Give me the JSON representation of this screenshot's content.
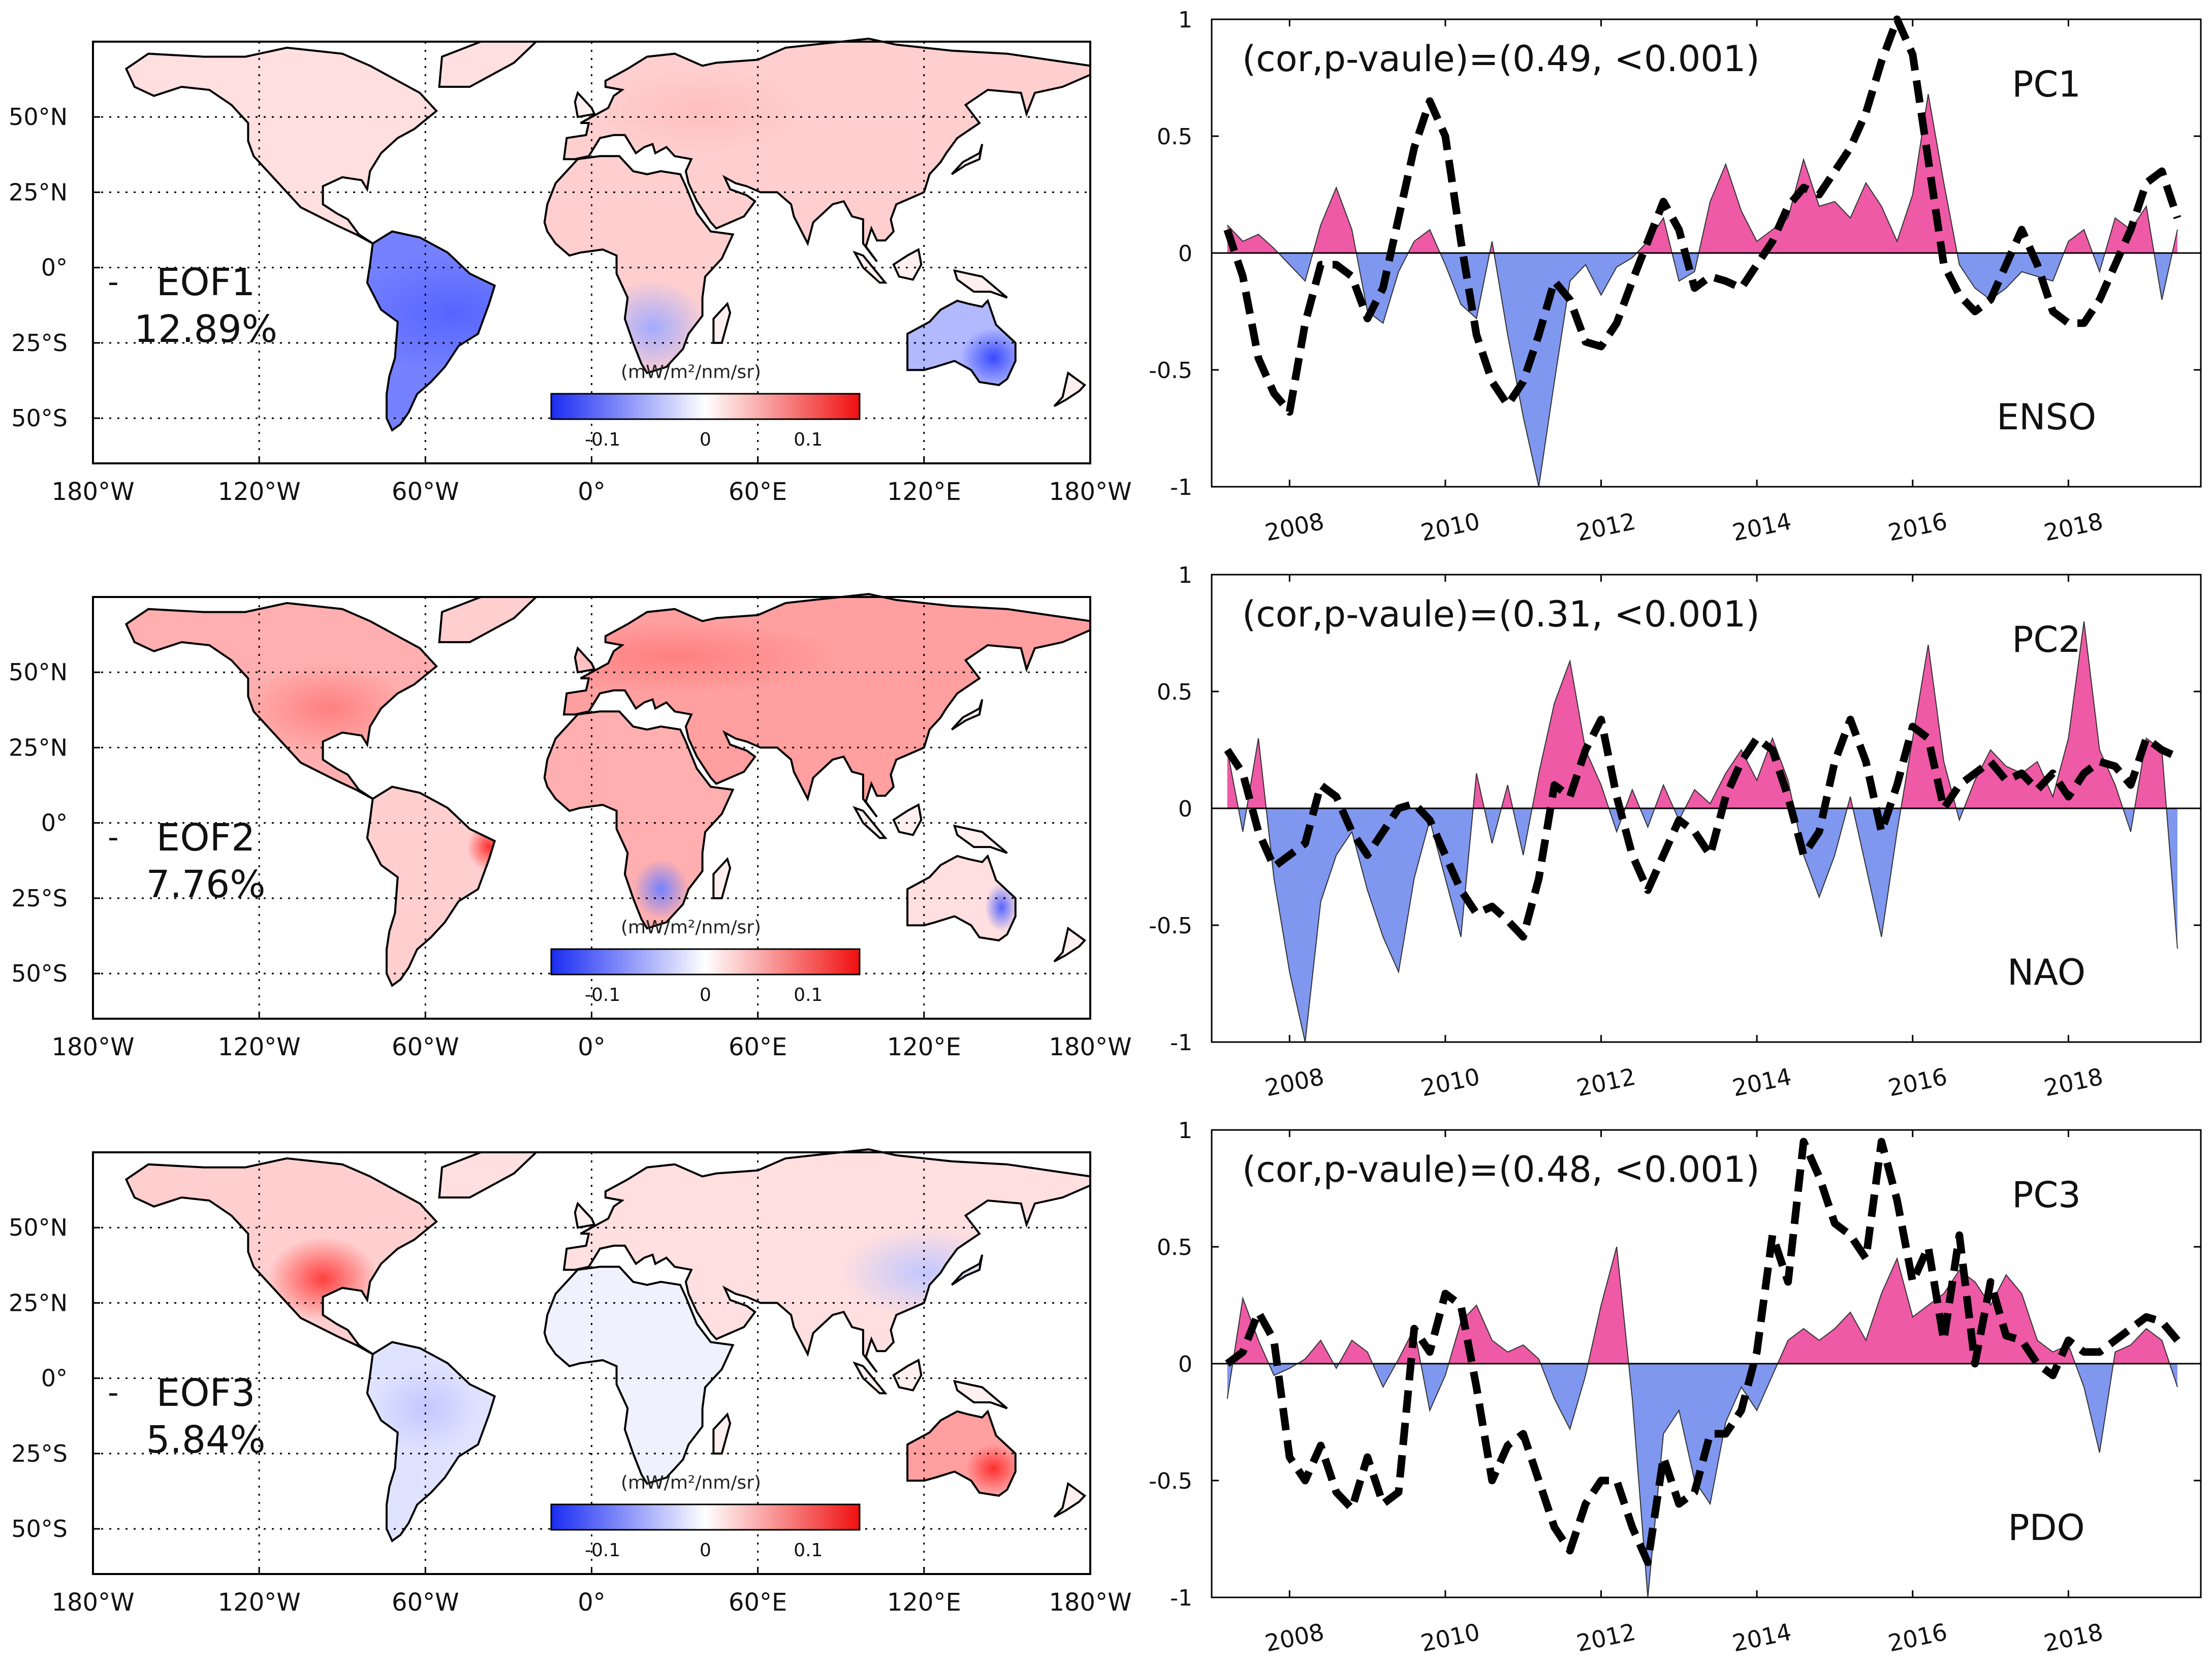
{
  "colors": {
    "positive_fill": "#ee5aa6",
    "negative_fill": "#7f97ee",
    "index_line": "#000000",
    "cbar_low": "#1a2cf2",
    "cbar_mid": "#ffffff",
    "cbar_high": "#f01010"
  },
  "map_axes": {
    "lon_ticks": [
      "180°W",
      "120°W",
      "60°W",
      "0°",
      "60°E",
      "120°E",
      "180°W"
    ],
    "lat_ticks": [
      "50°N",
      "25°N",
      "0°",
      "25°S",
      "50°S"
    ]
  },
  "colorbar": {
    "unit": "(mW/m²/nm/sr)",
    "tick_labels": [
      "-0.1",
      "0",
      "0.1"
    ],
    "range": [
      -0.15,
      0.15
    ]
  },
  "panels": [
    {
      "eof_name": "EOF1",
      "eof_variance": "12.89%",
      "pc_name": "PC1",
      "index_name": "ENSO",
      "cor_text": "(cor,p-vaule)=(0.49, <0.001)"
    },
    {
      "eof_name": "EOF2",
      "eof_variance": "7.76%",
      "pc_name": "PC2",
      "index_name": "NAO",
      "cor_text": "(cor,p-vaule)=(0.31, <0.001)"
    },
    {
      "eof_name": "EOF3",
      "eof_variance": "5.84%",
      "pc_name": "PC3",
      "index_name": "PDO",
      "cor_text": "(cor,p-vaule)=(0.48, <0.001)"
    }
  ],
  "chart_data": [
    {
      "type": "area",
      "title": "PC1 vs ENSO",
      "xlabel": "",
      "ylabel": "",
      "xlim": [
        2007.0,
        2019.7
      ],
      "ylim": [
        -1,
        1
      ],
      "x_ticks": [
        "2008",
        "2010",
        "2012",
        "2014",
        "2016",
        "2018"
      ],
      "y_ticks": [
        "1",
        "0.5",
        "0",
        "-0.5",
        "-1"
      ],
      "series": [
        {
          "name": "PC1",
          "style": "filled",
          "x": [
            2007.2,
            2007.4,
            2007.6,
            2007.8,
            2008.0,
            2008.2,
            2008.4,
            2008.6,
            2008.8,
            2009.0,
            2009.2,
            2009.4,
            2009.6,
            2009.8,
            2010.0,
            2010.2,
            2010.4,
            2010.6,
            2010.8,
            2011.0,
            2011.2,
            2011.4,
            2011.6,
            2011.8,
            2012.0,
            2012.2,
            2012.4,
            2012.6,
            2012.8,
            2013.0,
            2013.2,
            2013.4,
            2013.6,
            2013.8,
            2014.0,
            2014.2,
            2014.4,
            2014.6,
            2014.8,
            2015.0,
            2015.2,
            2015.4,
            2015.6,
            2015.8,
            2016.0,
            2016.2,
            2016.4,
            2016.6,
            2016.8,
            2017.0,
            2017.2,
            2017.4,
            2017.6,
            2017.8,
            2018.0,
            2018.2,
            2018.4,
            2018.6,
            2018.8,
            2019.0,
            2019.2,
            2019.4
          ],
          "values": [
            0.12,
            0.05,
            0.08,
            0.02,
            -0.05,
            -0.12,
            0.12,
            0.28,
            0.1,
            -0.25,
            -0.3,
            -0.08,
            0.05,
            0.1,
            -0.05,
            -0.22,
            -0.28,
            0.05,
            -0.35,
            -0.7,
            -1.0,
            -0.55,
            -0.12,
            -0.05,
            -0.18,
            -0.06,
            -0.02,
            0.05,
            0.15,
            -0.12,
            -0.08,
            0.22,
            0.38,
            0.18,
            0.05,
            0.1,
            0.15,
            0.4,
            0.2,
            0.22,
            0.15,
            0.3,
            0.2,
            0.05,
            0.25,
            0.68,
            0.3,
            -0.05,
            -0.15,
            -0.2,
            -0.15,
            -0.08,
            -0.1,
            -0.12,
            0.05,
            0.1,
            -0.08,
            0.15,
            0.1,
            0.2,
            -0.2,
            0.1
          ]
        },
        {
          "name": "ENSO",
          "style": "dashed",
          "x": [
            2007.2,
            2007.4,
            2007.6,
            2007.8,
            2008.0,
            2008.2,
            2008.4,
            2008.6,
            2008.8,
            2009.0,
            2009.2,
            2009.4,
            2009.6,
            2009.8,
            2010.0,
            2010.2,
            2010.4,
            2010.6,
            2010.8,
            2011.0,
            2011.2,
            2011.4,
            2011.6,
            2011.8,
            2012.0,
            2012.2,
            2012.4,
            2012.6,
            2012.8,
            2013.0,
            2013.2,
            2013.4,
            2013.6,
            2013.8,
            2014.0,
            2014.2,
            2014.4,
            2014.6,
            2014.8,
            2015.0,
            2015.2,
            2015.4,
            2015.6,
            2015.8,
            2016.0,
            2016.2,
            2016.4,
            2016.6,
            2016.8,
            2017.0,
            2017.2,
            2017.4,
            2017.6,
            2017.8,
            2018.0,
            2018.2,
            2018.4,
            2018.6,
            2018.8,
            2019.0,
            2019.2,
            2019.4
          ],
          "values": [
            0.1,
            -0.1,
            -0.45,
            -0.6,
            -0.68,
            -0.3,
            -0.05,
            -0.05,
            -0.1,
            -0.28,
            -0.15,
            0.15,
            0.45,
            0.65,
            0.5,
            0.05,
            -0.35,
            -0.55,
            -0.65,
            -0.55,
            -0.35,
            -0.12,
            -0.2,
            -0.38,
            -0.4,
            -0.3,
            -0.12,
            0.05,
            0.22,
            0.1,
            -0.15,
            -0.1,
            -0.12,
            -0.15,
            -0.05,
            0.05,
            0.2,
            0.28,
            0.25,
            0.35,
            0.45,
            0.6,
            0.82,
            1.0,
            0.85,
            0.4,
            -0.05,
            -0.18,
            -0.25,
            -0.2,
            -0.05,
            0.1,
            -0.05,
            -0.25,
            -0.3,
            -0.3,
            -0.2,
            -0.05,
            0.1,
            0.3,
            0.35,
            0.15
          ]
        }
      ]
    },
    {
      "type": "area",
      "title": "PC2 vs NAO",
      "xlabel": "",
      "ylabel": "",
      "xlim": [
        2007.0,
        2019.7
      ],
      "ylim": [
        -1,
        1
      ],
      "x_ticks": [
        "2008",
        "2010",
        "2012",
        "2014",
        "2016",
        "2018"
      ],
      "y_ticks": [
        "1",
        "0.5",
        "0",
        "-0.5",
        "-1"
      ],
      "series": [
        {
          "name": "PC2",
          "style": "filled",
          "x": [
            2007.2,
            2007.4,
            2007.6,
            2007.8,
            2008.0,
            2008.2,
            2008.4,
            2008.6,
            2008.8,
            2009.0,
            2009.2,
            2009.4,
            2009.6,
            2009.8,
            2010.0,
            2010.2,
            2010.4,
            2010.6,
            2010.8,
            2011.0,
            2011.2,
            2011.4,
            2011.6,
            2011.8,
            2012.0,
            2012.2,
            2012.4,
            2012.6,
            2012.8,
            2013.0,
            2013.2,
            2013.4,
            2013.6,
            2013.8,
            2014.0,
            2014.2,
            2014.4,
            2014.6,
            2014.8,
            2015.0,
            2015.2,
            2015.4,
            2015.6,
            2015.8,
            2016.0,
            2016.2,
            2016.4,
            2016.6,
            2016.8,
            2017.0,
            2017.2,
            2017.4,
            2017.6,
            2017.8,
            2018.0,
            2018.2,
            2018.4,
            2018.6,
            2018.8,
            2019.0,
            2019.2,
            2019.4
          ],
          "values": [
            0.25,
            -0.1,
            0.3,
            -0.3,
            -0.7,
            -1.0,
            -0.4,
            -0.2,
            -0.1,
            -0.35,
            -0.55,
            -0.7,
            -0.3,
            -0.05,
            -0.3,
            -0.55,
            0.15,
            -0.15,
            0.1,
            -0.2,
            0.15,
            0.45,
            0.63,
            0.25,
            0.1,
            -0.1,
            0.08,
            -0.08,
            0.1,
            -0.05,
            0.08,
            0.02,
            0.15,
            0.25,
            0.12,
            0.3,
            0.12,
            -0.2,
            -0.38,
            -0.2,
            0.05,
            -0.25,
            -0.55,
            -0.1,
            0.3,
            0.7,
            0.2,
            -0.05,
            0.12,
            0.25,
            0.18,
            0.15,
            0.2,
            0.05,
            0.3,
            0.8,
            0.25,
            0.1,
            -0.1,
            0.3,
            0.25,
            -0.6
          ]
        },
        {
          "name": "NAO",
          "style": "dashed",
          "x": [
            2007.2,
            2007.4,
            2007.6,
            2007.8,
            2008.0,
            2008.2,
            2008.4,
            2008.6,
            2008.8,
            2009.0,
            2009.2,
            2009.4,
            2009.6,
            2009.8,
            2010.0,
            2010.2,
            2010.4,
            2010.6,
            2010.8,
            2011.0,
            2011.2,
            2011.4,
            2011.6,
            2011.8,
            2012.0,
            2012.2,
            2012.4,
            2012.6,
            2012.8,
            2013.0,
            2013.2,
            2013.4,
            2013.6,
            2013.8,
            2014.0,
            2014.2,
            2014.4,
            2014.6,
            2014.8,
            2015.0,
            2015.2,
            2015.4,
            2015.6,
            2015.8,
            2016.0,
            2016.2,
            2016.4,
            2016.6,
            2016.8,
            2017.0,
            2017.2,
            2017.4,
            2017.6,
            2017.8,
            2018.0,
            2018.2,
            2018.4,
            2018.6,
            2018.8,
            2019.0,
            2019.2,
            2019.4
          ],
          "values": [
            0.25,
            0.15,
            -0.1,
            -0.25,
            -0.2,
            -0.15,
            0.1,
            0.05,
            -0.1,
            -0.2,
            -0.1,
            0.0,
            0.02,
            -0.05,
            -0.2,
            -0.35,
            -0.45,
            -0.42,
            -0.48,
            -0.55,
            -0.3,
            0.1,
            0.05,
            0.25,
            0.38,
            0.05,
            -0.2,
            -0.35,
            -0.2,
            -0.05,
            -0.1,
            -0.2,
            0.05,
            0.2,
            0.3,
            0.25,
            0.05,
            -0.2,
            -0.1,
            0.2,
            0.38,
            0.2,
            -0.1,
            0.1,
            0.35,
            0.3,
            0.0,
            0.1,
            0.15,
            0.2,
            0.12,
            0.15,
            0.08,
            0.15,
            0.05,
            0.15,
            0.2,
            0.18,
            0.1,
            0.3,
            0.25,
            0.22
          ]
        }
      ]
    },
    {
      "type": "area",
      "title": "PC3 vs PDO",
      "xlabel": "",
      "ylabel": "",
      "xlim": [
        2007.0,
        2019.7
      ],
      "ylim": [
        -1,
        1
      ],
      "x_ticks": [
        "2008",
        "2010",
        "2012",
        "2014",
        "2016",
        "2018"
      ],
      "y_ticks": [
        "1",
        "0.5",
        "0",
        "-0.5",
        "-1"
      ],
      "series": [
        {
          "name": "PC3",
          "style": "filled",
          "x": [
            2007.2,
            2007.4,
            2007.6,
            2007.8,
            2008.0,
            2008.2,
            2008.4,
            2008.6,
            2008.8,
            2009.0,
            2009.2,
            2009.4,
            2009.6,
            2009.8,
            2010.0,
            2010.2,
            2010.4,
            2010.6,
            2010.8,
            2011.0,
            2011.2,
            2011.4,
            2011.6,
            2011.8,
            2012.0,
            2012.2,
            2012.4,
            2012.6,
            2012.8,
            2013.0,
            2013.2,
            2013.4,
            2013.6,
            2013.8,
            2014.0,
            2014.2,
            2014.4,
            2014.6,
            2014.8,
            2015.0,
            2015.2,
            2015.4,
            2015.6,
            2015.8,
            2016.0,
            2016.2,
            2016.4,
            2016.6,
            2016.8,
            2017.0,
            2017.2,
            2017.4,
            2017.6,
            2017.8,
            2018.0,
            2018.2,
            2018.4,
            2018.6,
            2018.8,
            2019.0,
            2019.2,
            2019.4
          ],
          "values": [
            -0.15,
            0.28,
            0.1,
            -0.05,
            -0.02,
            0.02,
            0.1,
            -0.02,
            0.1,
            0.05,
            -0.1,
            0.02,
            0.15,
            -0.2,
            -0.05,
            0.18,
            0.25,
            0.1,
            0.05,
            0.08,
            0.02,
            -0.15,
            -0.28,
            -0.05,
            0.25,
            0.5,
            -0.15,
            -1.0,
            -0.3,
            -0.2,
            -0.5,
            -0.6,
            -0.25,
            -0.1,
            -0.2,
            -0.05,
            0.1,
            0.15,
            0.1,
            0.15,
            0.22,
            0.1,
            0.3,
            0.45,
            0.2,
            0.25,
            0.3,
            0.4,
            0.35,
            0.25,
            0.38,
            0.3,
            0.1,
            0.05,
            0.08,
            -0.1,
            -0.38,
            0.05,
            0.08,
            0.15,
            0.1,
            -0.1
          ]
        },
        {
          "name": "PDO",
          "style": "dashed",
          "x": [
            2007.2,
            2007.4,
            2007.6,
            2007.8,
            2008.0,
            2008.2,
            2008.4,
            2008.6,
            2008.8,
            2009.0,
            2009.2,
            2009.4,
            2009.6,
            2009.8,
            2010.0,
            2010.2,
            2010.4,
            2010.6,
            2010.8,
            2011.0,
            2011.2,
            2011.4,
            2011.6,
            2011.8,
            2012.0,
            2012.2,
            2012.4,
            2012.6,
            2012.8,
            2013.0,
            2013.2,
            2013.4,
            2013.6,
            2013.8,
            2014.0,
            2014.2,
            2014.4,
            2014.6,
            2014.8,
            2015.0,
            2015.2,
            2015.4,
            2015.6,
            2015.8,
            2016.0,
            2016.2,
            2016.4,
            2016.6,
            2016.8,
            2017.0,
            2017.2,
            2017.4,
            2017.6,
            2017.8,
            2018.0,
            2018.2,
            2018.4,
            2018.6,
            2018.8,
            2019.0,
            2019.2,
            2019.4
          ],
          "values": [
            0.0,
            0.05,
            0.22,
            0.1,
            -0.4,
            -0.5,
            -0.35,
            -0.55,
            -0.62,
            -0.4,
            -0.6,
            -0.55,
            0.15,
            0.05,
            0.3,
            0.25,
            -0.1,
            -0.5,
            -0.35,
            -0.3,
            -0.5,
            -0.7,
            -0.8,
            -0.6,
            -0.5,
            -0.5,
            -0.7,
            -0.85,
            -0.4,
            -0.6,
            -0.55,
            -0.3,
            -0.3,
            -0.2,
            0.05,
            0.55,
            0.35,
            0.95,
            0.8,
            0.6,
            0.55,
            0.45,
            0.95,
            0.7,
            0.35,
            0.5,
            0.1,
            0.55,
            0.0,
            0.35,
            0.12,
            0.1,
            0.0,
            -0.05,
            0.1,
            0.05,
            0.05,
            0.1,
            0.15,
            0.2,
            0.18,
            0.1
          ]
        }
      ]
    }
  ]
}
